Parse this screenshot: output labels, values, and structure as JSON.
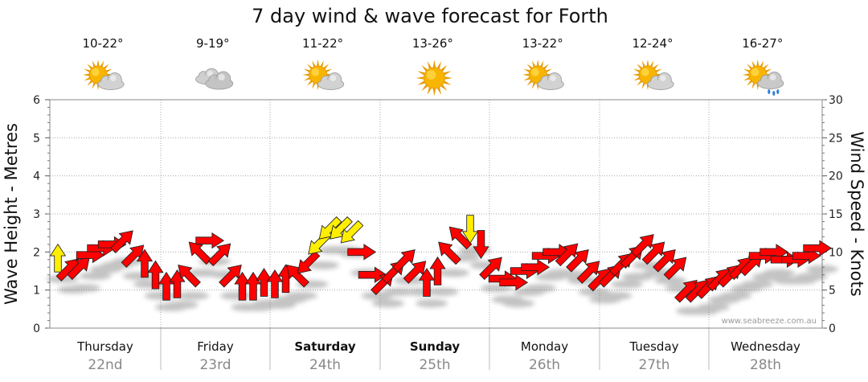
{
  "chart_data": {
    "type": "line",
    "title": "7 day wind & wave forecast for Forth",
    "y_left": {
      "label": "Wave Height - Metres",
      "lim": [
        0,
        6
      ],
      "ticks": [
        "0",
        "1",
        "2",
        "3",
        "4",
        "5",
        "6"
      ]
    },
    "y_right": {
      "label": "Wind Speed - Knots",
      "lim": [
        0,
        30
      ],
      "ticks": [
        "0",
        "5",
        "10",
        "15",
        "20",
        "25",
        "30"
      ]
    },
    "grid": true,
    "days": [
      {
        "name": "Thursday",
        "date": "22nd",
        "temp": "10-22°",
        "icon": "sun-cloud-icon",
        "bold": false
      },
      {
        "name": "Friday",
        "date": "23rd",
        "temp": "9-19°",
        "icon": "cloud-icon",
        "bold": false
      },
      {
        "name": "Saturday",
        "date": "24th",
        "temp": "11-22°",
        "icon": "sun-cloud-icon",
        "bold": true
      },
      {
        "name": "Sunday",
        "date": "25th",
        "temp": "13-26°",
        "icon": "sun-icon",
        "bold": true
      },
      {
        "name": "Monday",
        "date": "26th",
        "temp": "13-22°",
        "icon": "sun-cloud-icon",
        "bold": false
      },
      {
        "name": "Tuesday",
        "date": "27th",
        "temp": "12-24°",
        "icon": "sun-cloud-icon",
        "bold": false
      },
      {
        "name": "Wednesday",
        "date": "28th",
        "temp": "16-27°",
        "icon": "sun-rain-icon",
        "bold": false
      }
    ],
    "wind_series": {
      "name": "Wind",
      "speed_knots": [
        9.2,
        7.8,
        8.0,
        9.6,
        10.5,
        11.0,
        11.5,
        9.6,
        8.5,
        7.0,
        5.5,
        5.8,
        7.0,
        10.0,
        11.5,
        9.8,
        7.0,
        5.5,
        5.5,
        6.0,
        5.8,
        6.5,
        7.0,
        8.5,
        11.0,
        13.0,
        13.0,
        12.5,
        10.0,
        7.0,
        6.0,
        7.5,
        9.0,
        7.5,
        6.0,
        7.5,
        10.0,
        12.0,
        13.0,
        11.0,
        8.0,
        6.5,
        6.0,
        7.5,
        8.0,
        9.5,
        10.0,
        9.8,
        9.0,
        7.5,
        6.5,
        7.0,
        8.5,
        9.5,
        11.0,
        10.0,
        9.0,
        8.0,
        5.0,
        5.0,
        5.5,
        6.5,
        7.0,
        8.0,
        8.5,
        9.5,
        10.0,
        9.0,
        9.0,
        9.5,
        10.5
      ],
      "direction": [
        "S",
        "SW",
        "SW",
        "W",
        "W",
        "W",
        "SW",
        "SW",
        "S",
        "S",
        "S",
        "S",
        "SE",
        "SE",
        "W",
        "SW",
        "SW",
        "S",
        "S",
        "S",
        "S",
        "S",
        "SE",
        "NE",
        "NE",
        "NE",
        "NE",
        "NE",
        "W",
        "W",
        "SW",
        "SW",
        "SW",
        "SW",
        "S",
        "S",
        "SE",
        "SE",
        "N",
        "N",
        "SW",
        "W",
        "W",
        "W",
        "W",
        "W",
        "W",
        "SW",
        "SW",
        "SW",
        "SW",
        "SW",
        "SW",
        "SW",
        "SW",
        "SW",
        "SW",
        "SW",
        "SW",
        "SW",
        "SW",
        "SW",
        "SW",
        "SW",
        "SW",
        "W",
        "W",
        "W",
        "W",
        "W",
        "W"
      ],
      "high_wind_flag": [
        true,
        false,
        false,
        false,
        false,
        false,
        false,
        false,
        false,
        false,
        false,
        false,
        false,
        false,
        false,
        false,
        false,
        false,
        false,
        false,
        false,
        false,
        false,
        false,
        true,
        true,
        true,
        true,
        false,
        false,
        false,
        false,
        false,
        false,
        false,
        false,
        false,
        false,
        true,
        false,
        false,
        false,
        false,
        false,
        false,
        false,
        false,
        false,
        false,
        false,
        false,
        false,
        false,
        false,
        false,
        false,
        false,
        false,
        false,
        false,
        false,
        false,
        false,
        false,
        false,
        false,
        false,
        false,
        false,
        false,
        false
      ]
    },
    "watermark": "www.seabreeze.com.au"
  }
}
